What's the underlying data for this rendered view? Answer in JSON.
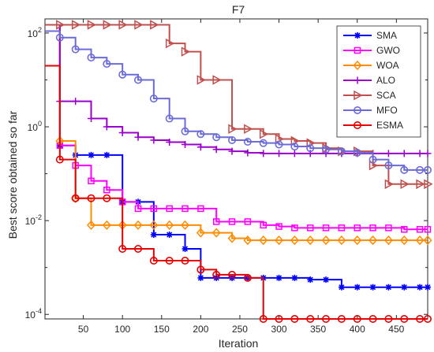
{
  "chart_data": {
    "type": "line",
    "title": "F7",
    "xlabel": "Iteration",
    "ylabel": "Best score obtained so far",
    "yscale": "log",
    "xlim": [
      1,
      490
    ],
    "ylim": [
      8e-05,
      200
    ],
    "xticks": [
      50,
      100,
      150,
      200,
      250,
      300,
      350,
      400,
      450
    ],
    "xtick_labels": [
      "50",
      "100",
      "150",
      "200",
      "250",
      "300",
      "350",
      "400",
      "450"
    ],
    "yticks": [
      0.0001,
      0.01,
      1,
      100
    ],
    "ytick_labels": [
      {
        "base": "10",
        "exp": "-4"
      },
      {
        "base": "10",
        "exp": "-2"
      },
      {
        "base": "10",
        "exp": "0"
      },
      {
        "base": "10",
        "exp": "2"
      }
    ],
    "grid": false,
    "legend_position": "top-right",
    "series": [
      {
        "name": "SMA",
        "color": "#0000ff",
        "marker": "asterisk",
        "x": [
          1,
          20,
          40,
          60,
          80,
          100,
          120,
          140,
          160,
          180,
          200,
          220,
          240,
          260,
          280,
          300,
          320,
          340,
          360,
          380,
          400,
          420,
          440,
          460,
          480,
          490
        ],
        "y": [
          150,
          0.4,
          0.25,
          0.25,
          0.25,
          0.025,
          0.025,
          0.005,
          0.005,
          0.0025,
          0.0006,
          0.0006,
          0.0006,
          0.0006,
          0.0006,
          0.0006,
          0.0006,
          0.00055,
          0.00055,
          0.00038,
          0.00038,
          0.00038,
          0.00038,
          0.00038,
          0.00038,
          0.00038
        ]
      },
      {
        "name": "GWO",
        "color": "#ff00ff",
        "marker": "square",
        "x": [
          1,
          20,
          40,
          60,
          80,
          100,
          120,
          140,
          160,
          180,
          200,
          220,
          240,
          260,
          280,
          300,
          320,
          340,
          360,
          380,
          400,
          420,
          440,
          460,
          480,
          490
        ],
        "y": [
          150,
          0.4,
          0.15,
          0.07,
          0.045,
          0.025,
          0.018,
          0.018,
          0.018,
          0.018,
          0.018,
          0.0095,
          0.0095,
          0.0095,
          0.008,
          0.0075,
          0.007,
          0.007,
          0.007,
          0.007,
          0.007,
          0.007,
          0.007,
          0.0065,
          0.0065,
          0.0065
        ]
      },
      {
        "name": "WOA",
        "color": "#ff8c00",
        "marker": "diamond",
        "x": [
          1,
          20,
          40,
          60,
          80,
          100,
          120,
          140,
          160,
          180,
          200,
          220,
          240,
          260,
          280,
          300,
          320,
          340,
          360,
          380,
          400,
          420,
          440,
          460,
          480,
          490
        ],
        "y": [
          150,
          0.5,
          0.03,
          0.008,
          0.008,
          0.008,
          0.008,
          0.008,
          0.008,
          0.008,
          0.0055,
          0.0055,
          0.0042,
          0.0038,
          0.0038,
          0.0038,
          0.0038,
          0.0038,
          0.0038,
          0.0038,
          0.0038,
          0.0038,
          0.0038,
          0.0038,
          0.0038,
          0.0038
        ]
      },
      {
        "name": "ALO",
        "color": "#9900cc",
        "marker": "plus",
        "x": [
          1,
          20,
          40,
          60,
          80,
          100,
          120,
          140,
          160,
          180,
          200,
          220,
          240,
          260,
          280,
          300,
          320,
          340,
          360,
          380,
          400,
          420,
          440,
          460,
          480,
          490
        ],
        "y": [
          150,
          3.5,
          3.5,
          1.5,
          1.0,
          0.75,
          0.6,
          0.52,
          0.47,
          0.42,
          0.37,
          0.33,
          0.3,
          0.28,
          0.27,
          0.27,
          0.27,
          0.27,
          0.27,
          0.27,
          0.27,
          0.27,
          0.27,
          0.27,
          0.27,
          0.27
        ]
      },
      {
        "name": "SCA",
        "color": "#c0504d",
        "marker": "triangle-right",
        "x": [
          1,
          20,
          40,
          60,
          80,
          100,
          120,
          140,
          160,
          180,
          200,
          220,
          240,
          260,
          280,
          300,
          320,
          340,
          360,
          380,
          400,
          420,
          440,
          460,
          480,
          490
        ],
        "y": [
          150,
          150,
          150,
          150,
          150,
          150,
          150,
          150,
          60,
          40,
          10,
          10,
          0.9,
          0.9,
          0.7,
          0.55,
          0.5,
          0.45,
          0.35,
          0.3,
          0.3,
          0.15,
          0.06,
          0.06,
          0.06,
          0.06
        ]
      },
      {
        "name": "MFO",
        "color": "#6b6bd8",
        "marker": "circle",
        "x": [
          1,
          20,
          40,
          60,
          80,
          100,
          120,
          140,
          160,
          180,
          200,
          220,
          240,
          260,
          280,
          300,
          320,
          340,
          360,
          380,
          400,
          420,
          440,
          460,
          480,
          490
        ],
        "y": [
          110,
          80,
          45,
          30,
          22,
          13,
          10,
          4,
          1.5,
          0.8,
          0.7,
          0.6,
          0.52,
          0.48,
          0.45,
          0.42,
          0.38,
          0.35,
          0.33,
          0.3,
          0.28,
          0.2,
          0.15,
          0.12,
          0.12,
          0.12
        ]
      },
      {
        "name": "ESMA",
        "color": "#e60000",
        "marker": "circle",
        "x": [
          1,
          20,
          40,
          60,
          80,
          100,
          120,
          140,
          160,
          180,
          200,
          220,
          240,
          260,
          280,
          300,
          320,
          340,
          360,
          380,
          400,
          420,
          440,
          460,
          480,
          490
        ],
        "y": [
          20,
          0.2,
          0.03,
          0.03,
          0.03,
          0.0025,
          0.0025,
          0.0014,
          0.0014,
          0.0014,
          0.0009,
          0.0007,
          0.0007,
          0.0006,
          8e-05,
          8e-05,
          8e-05,
          8e-05,
          8e-05,
          8e-05,
          8e-05,
          8e-05,
          8e-05,
          8e-05,
          8e-05,
          8e-05
        ]
      }
    ]
  }
}
